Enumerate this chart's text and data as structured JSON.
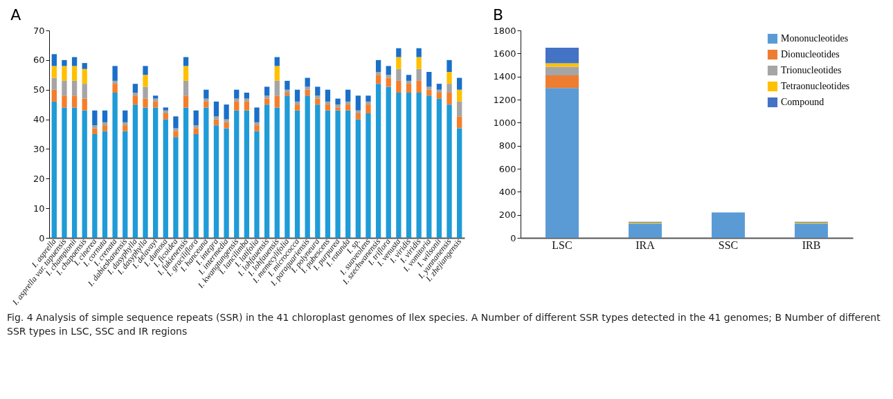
{
  "chart_data": [
    {
      "type": "bar",
      "title": "A",
      "stacked": true,
      "legend": false,
      "grid": false,
      "categories": [
        "I. asprella",
        "I. asprella var. tapuensis",
        "I. championii",
        "I. chapaensis",
        "I. cinerea",
        "I. cornuta",
        "I. crenata",
        "I. dabieshanensis",
        "I. dasyphylla",
        "I. dasyphylla",
        "I. delavayi",
        "I. dumosa",
        "I. ficoidea",
        "I. fukienensis",
        "I. graciliflora",
        "I. hanceana",
        "I. integra",
        "I. intermedia",
        "I. kwangtungensis",
        "I. lancilimba",
        "I. latifolia",
        "I. lohfauensis",
        "I. lohfauensis",
        "I. memecylifolia",
        "I. micrococca",
        "I. paraguariensis",
        "I. polyneura",
        "I. pubescens",
        "I. purpurea",
        "I. rotunda",
        "I. sp.",
        "I. suaveolens",
        "I. szechwanensis",
        "I. triflora",
        "I. venusta",
        "I. viridis",
        "I. viridis",
        "I. vomitoria",
        "I. wilsonii",
        "I. yunnanensis",
        "I. zhejiangensis"
      ],
      "ylim": [
        0,
        70
      ],
      "yticks": [
        0,
        10,
        20,
        30,
        40,
        50,
        60,
        70
      ],
      "series": [
        {
          "color": "#1f9bd7",
          "values": [
            46,
            44,
            44,
            43,
            35,
            36,
            49,
            36,
            45,
            44,
            44,
            40,
            34,
            44,
            35,
            44,
            38,
            37,
            43,
            43,
            36,
            45,
            44,
            48,
            43,
            48,
            45,
            43,
            43,
            43,
            40,
            42,
            52,
            51,
            49,
            49,
            49,
            48,
            47,
            45,
            37
          ]
        },
        {
          "color": "#f57e2a",
          "values": [
            4,
            4,
            4,
            4,
            2,
            2,
            3,
            2,
            3,
            3,
            2,
            2,
            2,
            4,
            2,
            2,
            2,
            2,
            3,
            3,
            2,
            2,
            4,
            1,
            2,
            2,
            2,
            2,
            1,
            2,
            2,
            3,
            3,
            3,
            4,
            3,
            4,
            2,
            2,
            4,
            4
          ]
        },
        {
          "color": "#a5a5a5",
          "values": [
            4,
            5,
            5,
            5,
            1,
            1,
            1,
            1,
            1,
            4,
            1,
            1,
            1,
            5,
            1,
            1,
            1,
            1,
            1,
            1,
            1,
            1,
            5,
            1,
            1,
            1,
            1,
            1,
            1,
            1,
            1,
            1,
            1,
            1,
            4,
            1,
            4,
            1,
            1,
            3,
            5
          ]
        },
        {
          "color": "#ffc000",
          "values": [
            4,
            5,
            5,
            5,
            0,
            0,
            0,
            0,
            0,
            4,
            0,
            0,
            0,
            5,
            0,
            0,
            0,
            0,
            0,
            0,
            0,
            0,
            5,
            0,
            0,
            0,
            0,
            0,
            0,
            0,
            0,
            0,
            0,
            0,
            4,
            0,
            4,
            0,
            0,
            4,
            4
          ]
        },
        {
          "color": "#1a6fc9",
          "values": [
            4,
            2,
            3,
            2,
            5,
            4,
            5,
            4,
            3,
            3,
            1,
            1,
            4,
            3,
            5,
            3,
            5,
            5,
            3,
            2,
            5,
            3,
            3,
            3,
            4,
            3,
            3,
            4,
            2,
            4,
            5,
            2,
            4,
            3,
            3,
            2,
            3,
            5,
            2,
            4,
            4
          ]
        }
      ],
      "annotations": [
        "Fig. 4  Analysis of simple sequence repeats (SSR) in the 41 chloroplast genomes of Ilex species. A Number of different SSR types detected in the 41 genomes; B Number of different SSR types in LSC, SSC and IR regions"
      ]
    },
    {
      "type": "bar",
      "title": "B",
      "stacked": true,
      "legend": "top right",
      "grid": false,
      "categories": [
        "LSC",
        "IRA",
        "SSC",
        "IRB"
      ],
      "ylim": [
        0,
        1800
      ],
      "yticks": [
        0,
        200,
        400,
        600,
        800,
        1000,
        1200,
        1400,
        1600,
        1800
      ],
      "series": [
        {
          "name": "Mononucleotides",
          "color": "#5b9bd5",
          "values": [
            1300,
            124,
            220,
            124
          ]
        },
        {
          "name": "Dionucleotides",
          "color": "#ed7d31",
          "values": [
            110,
            0,
            0,
            0
          ]
        },
        {
          "name": "Trionucleotides",
          "color": "#a5a5a5",
          "values": [
            75,
            null,
            0,
            null
          ]
        },
        {
          "name": "Tetraonucleotides",
          "color": "#ffc000",
          "values": [
            30,
            10,
            0,
            10
          ]
        },
        {
          "name": "Compound",
          "color": "#4472c4",
          "values": [
            135,
            6,
            0,
            6
          ]
        }
      ]
    }
  ]
}
